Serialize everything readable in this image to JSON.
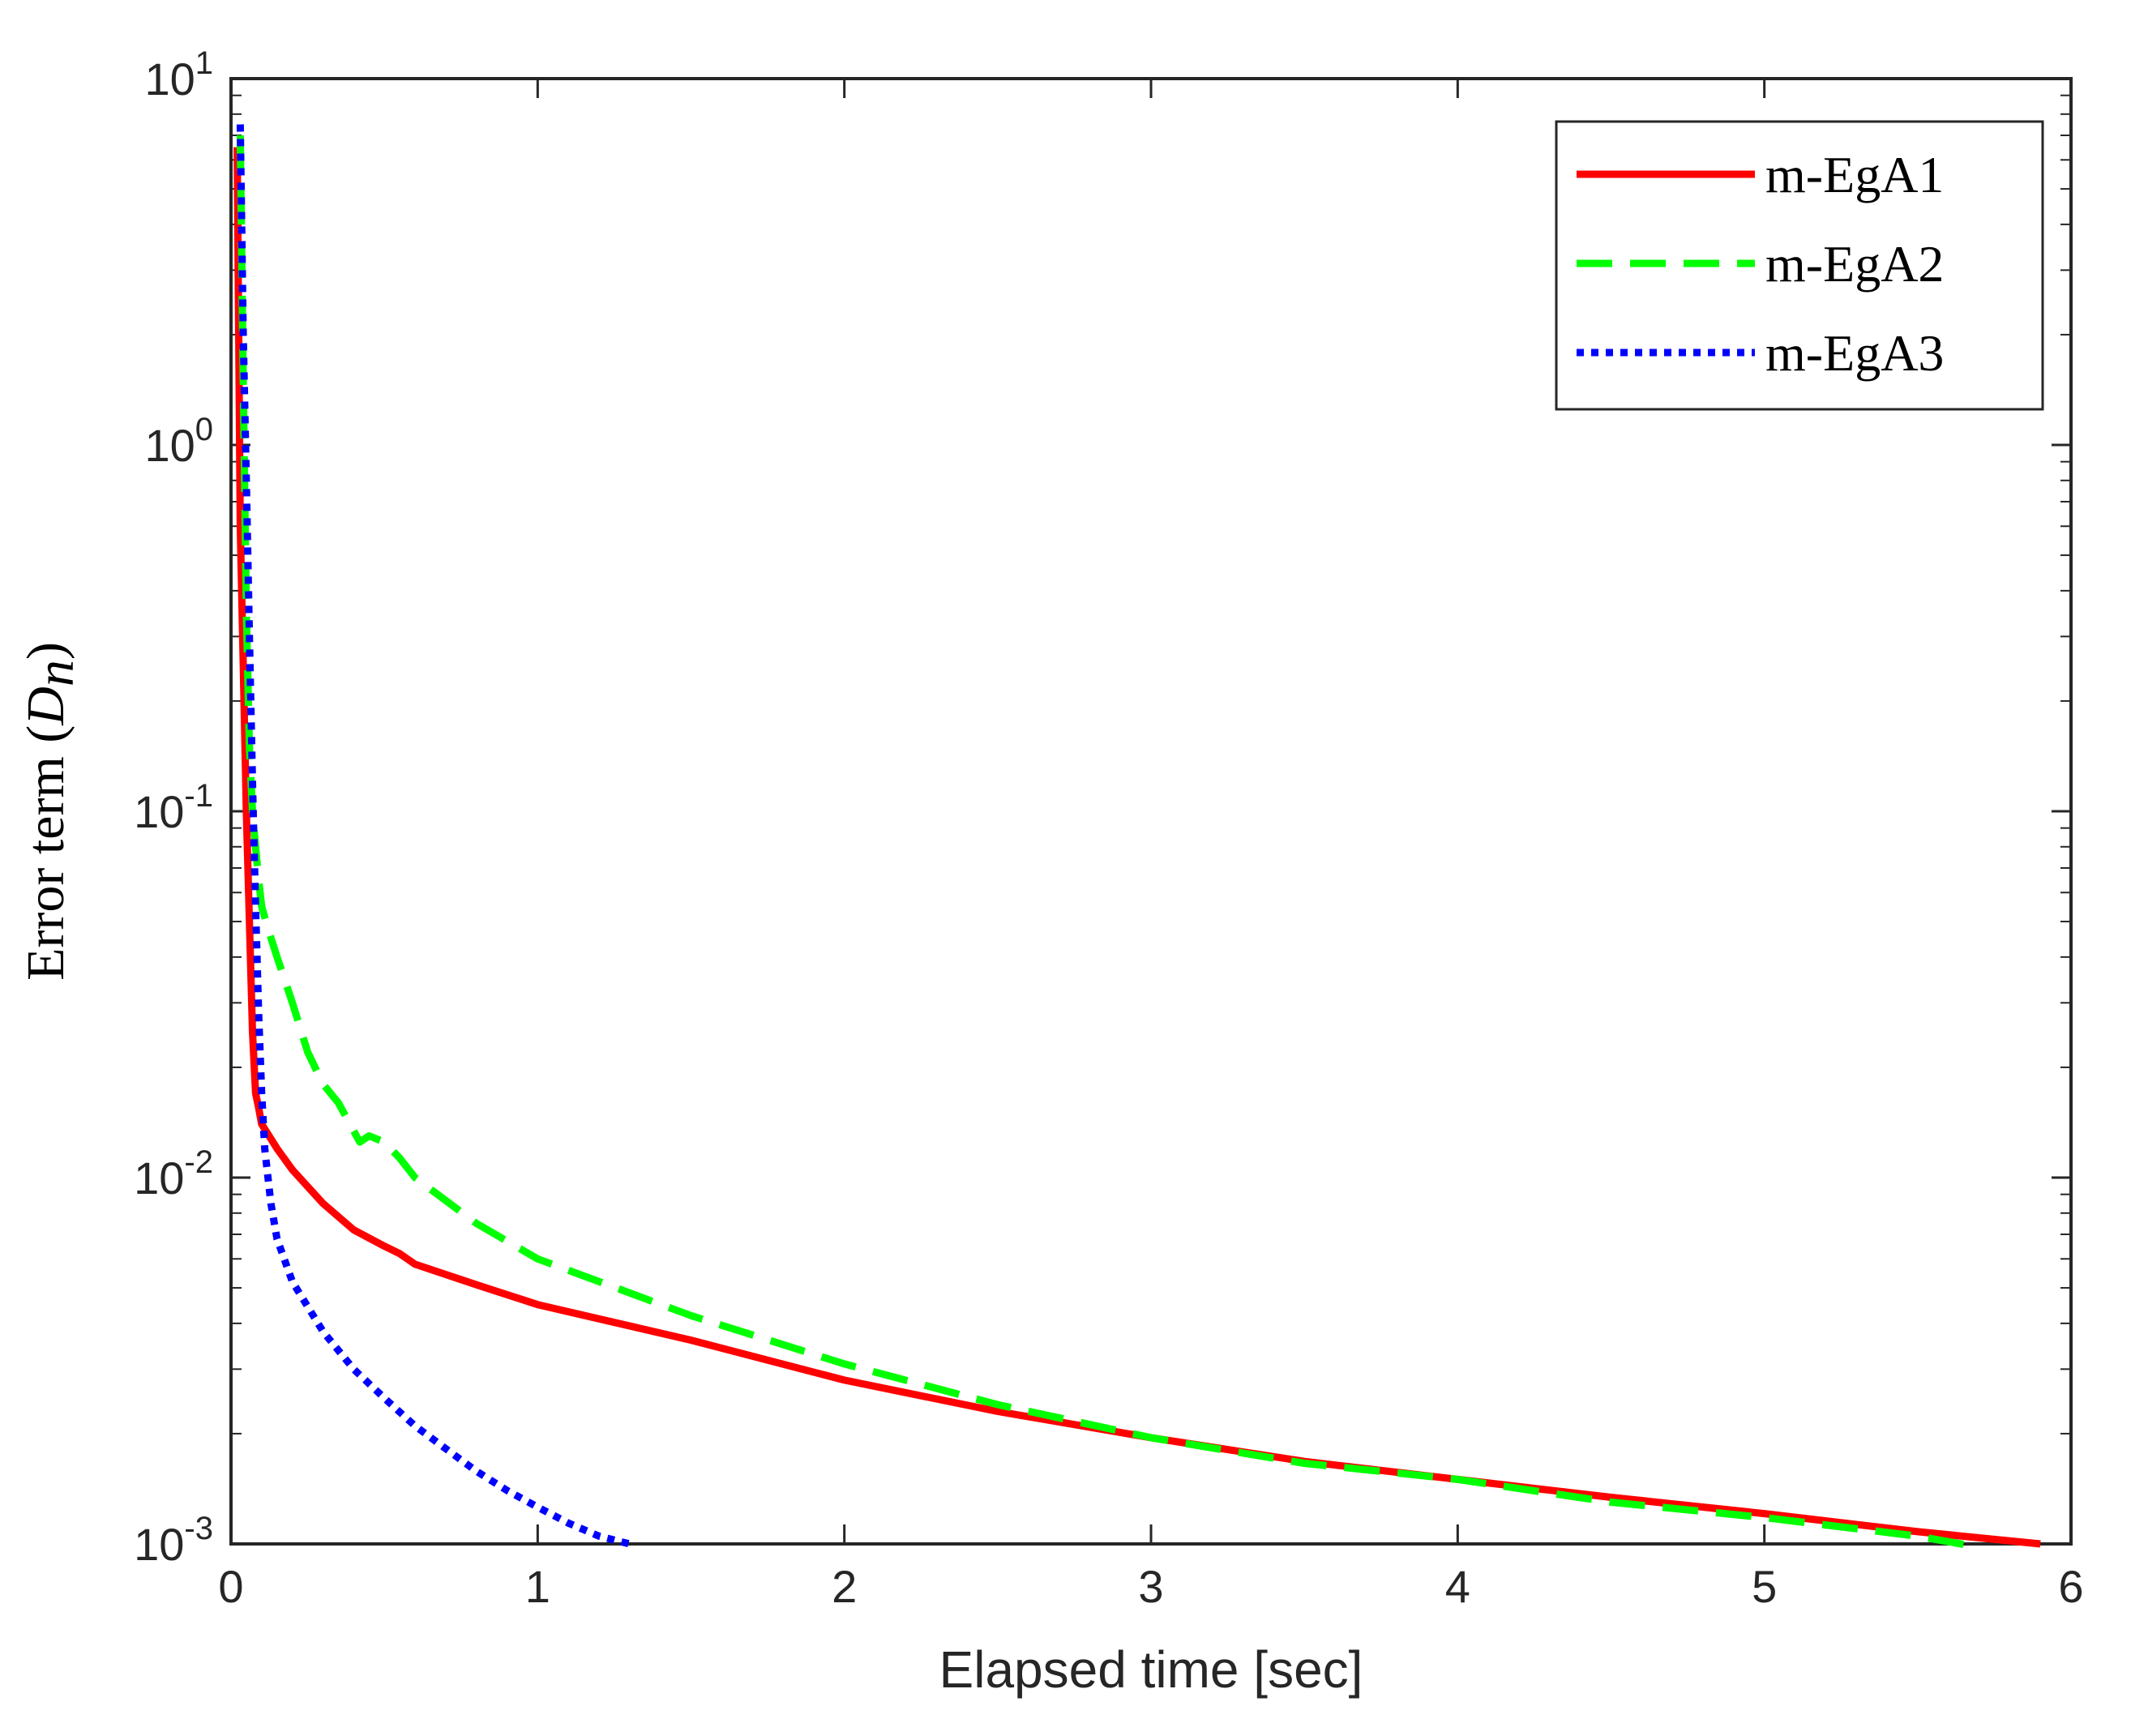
{
  "chart_data": {
    "type": "line",
    "title": "",
    "xlabel": "Elapsed time [sec]",
    "ylabel": {
      "prefix": "Error term (",
      "math_base": "D",
      "math_sub": "n",
      "suffix": ")"
    },
    "xlim": [
      0,
      6
    ],
    "ylim": [
      0.001,
      10
    ],
    "yscale": "log",
    "grid": false,
    "box": true,
    "x_ticks": [
      {
        "value": 0,
        "label": "0"
      },
      {
        "value": 1,
        "label": "1"
      },
      {
        "value": 2,
        "label": "2"
      },
      {
        "value": 3,
        "label": "3"
      },
      {
        "value": 4,
        "label": "4"
      },
      {
        "value": 5,
        "label": "5"
      },
      {
        "value": 6,
        "label": "6"
      }
    ],
    "y_ticks": [
      {
        "value": 10,
        "base": "10",
        "exp": "1"
      },
      {
        "value": 1,
        "base": "10",
        "exp": "0"
      },
      {
        "value": 0.1,
        "base": "10",
        "exp": "-1"
      },
      {
        "value": 0.01,
        "base": "10",
        "exp": "-2"
      },
      {
        "value": 0.001,
        "base": "10",
        "exp": "-3"
      }
    ],
    "legend_position": "top-right",
    "series": [
      {
        "name": "m-EgA1",
        "color": "#ff0000",
        "style": "solid",
        "x": [
          0.02,
          0.025,
          0.03,
          0.04,
          0.05,
          0.06,
          0.07,
          0.08,
          0.09,
          0.1,
          0.15,
          0.2,
          0.3,
          0.4,
          0.5,
          0.55,
          0.6,
          0.8,
          1.0,
          1.5,
          2.0,
          2.5,
          3.0,
          3.5,
          4.0,
          4.5,
          5.0,
          5.5,
          5.9
        ],
        "y": [
          6.5,
          2.0,
          0.6,
          0.25,
          0.1,
          0.05,
          0.025,
          0.017,
          0.0155,
          0.014,
          0.012,
          0.0105,
          0.0085,
          0.0072,
          0.0065,
          0.0062,
          0.0058,
          0.0051,
          0.0045,
          0.0036,
          0.0028,
          0.0023,
          0.00195,
          0.00168,
          0.0015,
          0.00134,
          0.00121,
          0.00108,
          0.001
        ]
      },
      {
        "name": "m-EgA2",
        "color": "#00ff00",
        "style": "dashed",
        "x": [
          0.03,
          0.04,
          0.05,
          0.06,
          0.07,
          0.08,
          0.09,
          0.1,
          0.12,
          0.15,
          0.2,
          0.25,
          0.3,
          0.35,
          0.42,
          0.45,
          0.5,
          0.55,
          0.6,
          0.8,
          1.0,
          1.5,
          2.0,
          2.5,
          3.0,
          3.5,
          4.0,
          4.5,
          5.0,
          5.5,
          5.7
        ],
        "y": [
          7.0,
          1.5,
          0.35,
          0.15,
          0.1,
          0.08,
          0.065,
          0.055,
          0.048,
          0.04,
          0.03,
          0.022,
          0.018,
          0.016,
          0.0125,
          0.013,
          0.0125,
          0.0113,
          0.01,
          0.0075,
          0.006,
          0.0042,
          0.0031,
          0.0024,
          0.00195,
          0.00166,
          0.0015,
          0.0013,
          0.00118,
          0.00105,
          0.00098
        ]
      },
      {
        "name": "m-EgA3",
        "color": "#0000ff",
        "style": "dotted",
        "x": [
          0.03,
          0.04,
          0.05,
          0.06,
          0.07,
          0.08,
          0.09,
          0.1,
          0.11,
          0.13,
          0.15,
          0.2,
          0.3,
          0.4,
          0.5,
          0.6,
          0.7,
          0.8,
          0.9,
          1.0,
          1.1,
          1.2,
          1.3
        ],
        "y": [
          7.5,
          2.0,
          0.8,
          0.3,
          0.12,
          0.055,
          0.028,
          0.017,
          0.012,
          0.0085,
          0.0068,
          0.0052,
          0.0038,
          0.003,
          0.0025,
          0.0021,
          0.00182,
          0.00158,
          0.0014,
          0.00126,
          0.00114,
          0.00105,
          0.001
        ]
      }
    ]
  }
}
